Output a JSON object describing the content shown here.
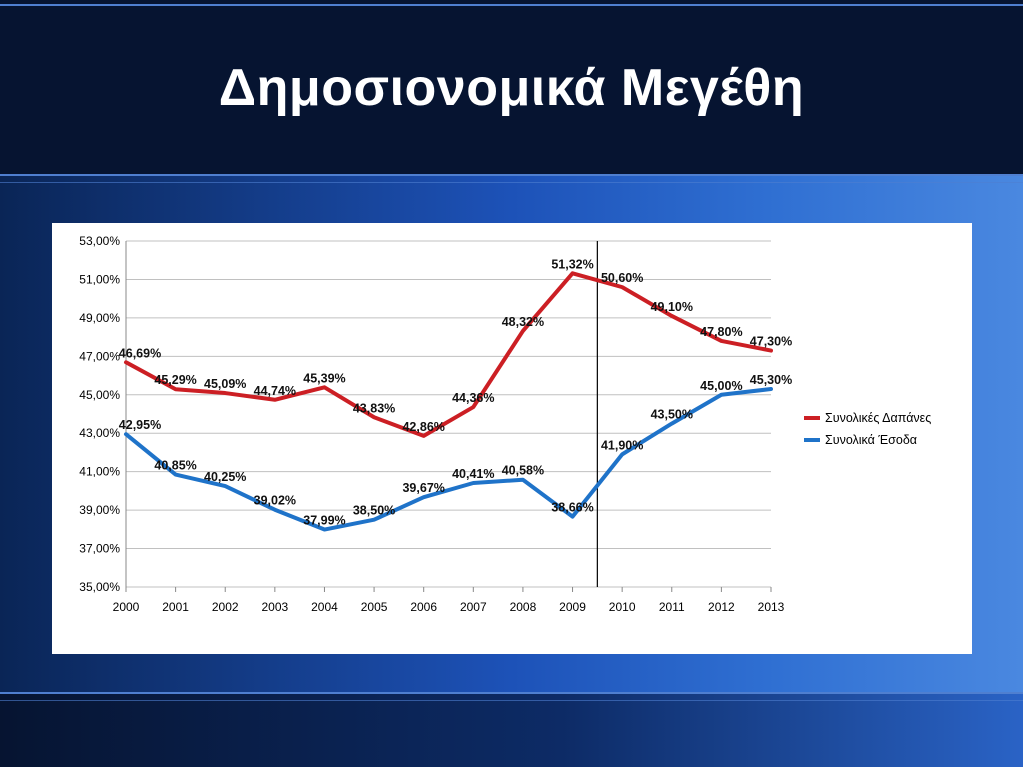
{
  "slide": {
    "title": "Δημοσιονομικά Μεγέθη"
  },
  "colors": {
    "expenditure": "#cc1f24",
    "revenue": "#1f73c9",
    "grid": "#c0c0c0",
    "marker": "#000000"
  },
  "chart_data": {
    "type": "line",
    "title": "",
    "xlabel": "",
    "ylabel": "",
    "categories": [
      "2000",
      "2001",
      "2002",
      "2003",
      "2004",
      "2005",
      "2006",
      "2007",
      "2008",
      "2009",
      "2010",
      "2011",
      "2012",
      "2013"
    ],
    "y_ticks": [
      "53,00%",
      "51,00%",
      "49,00%",
      "47,00%",
      "45,00%",
      "43,00%",
      "41,00%",
      "39,00%",
      "37,00%",
      "35,00%"
    ],
    "ylim": [
      35,
      53
    ],
    "grid": true,
    "legend_position": "right",
    "vertical_marker_between": [
      "2009",
      "2010"
    ],
    "series": [
      {
        "name": "Συνολικές Δαπάνες",
        "color": "#cc1f24",
        "values": [
          46.69,
          45.29,
          45.09,
          44.74,
          45.39,
          43.83,
          42.86,
          44.36,
          48.32,
          51.32,
          50.6,
          49.1,
          47.8,
          47.3
        ],
        "labels": [
          "46,69%",
          "45,29%",
          "45,09%",
          "44,74%",
          "45,39%",
          "43,83%",
          "42,86%",
          "44,36%",
          "48,32%",
          "51,32%",
          "50,60%",
          "49,10%",
          "47,80%",
          "47,30%"
        ]
      },
      {
        "name": "Συνολικά Έσοδα",
        "color": "#1f73c9",
        "values": [
          42.95,
          40.85,
          40.25,
          39.02,
          37.99,
          38.5,
          39.67,
          40.41,
          40.58,
          38.66,
          41.9,
          43.5,
          45.0,
          45.3
        ],
        "labels": [
          "42,95%",
          "40,85%",
          "40,25%",
          "39,02%",
          "37,99%",
          "38,50%",
          "39,67%",
          "40,41%",
          "40,58%",
          "38,66%",
          "41,90%",
          "43,50%",
          "45,00%",
          "45,30%"
        ]
      }
    ]
  }
}
